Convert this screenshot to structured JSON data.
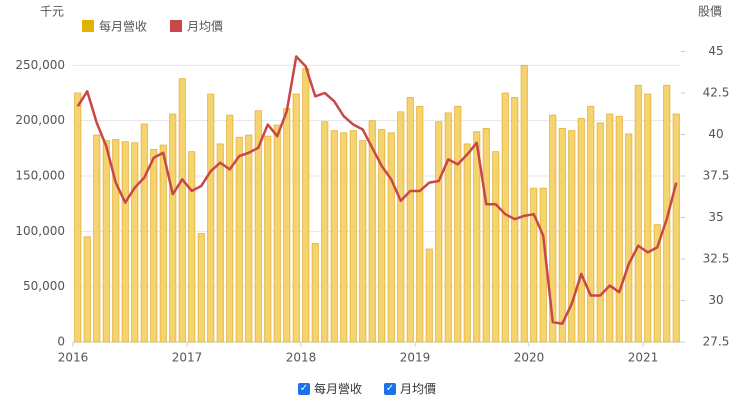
{
  "chart_data": {
    "type": "bar_line",
    "y_label": "千元",
    "y2_label": "股價",
    "categories": [
      "2016",
      null,
      null,
      null,
      null,
      null,
      null,
      null,
      null,
      null,
      null,
      null,
      "2017",
      null,
      null,
      null,
      null,
      null,
      null,
      null,
      null,
      null,
      null,
      null,
      "2018",
      null,
      null,
      null,
      null,
      null,
      null,
      null,
      null,
      null,
      null,
      null,
      "2019",
      null,
      null,
      null,
      null,
      null,
      null,
      null,
      null,
      null,
      null,
      null,
      "2020",
      null,
      null,
      null,
      null,
      null,
      null,
      null,
      null,
      null,
      null,
      null,
      "2021",
      null,
      null,
      null
    ],
    "series": [
      {
        "name": "每月營收",
        "type": "bar",
        "color": "#f5d36e",
        "values": [
          225000,
          95000,
          187000,
          182000,
          183000,
          181000,
          180000,
          197000,
          174000,
          178000,
          206000,
          238000,
          172000,
          98000,
          224000,
          179000,
          205000,
          185000,
          187000,
          209000,
          186000,
          196000,
          211000,
          224000,
          247000,
          89000,
          199000,
          191000,
          189000,
          191000,
          182000,
          200000,
          192000,
          189000,
          208000,
          221000,
          213000,
          84000,
          199000,
          207000,
          213000,
          179000,
          190000,
          193000,
          172000,
          225000,
          221000,
          250000,
          139000,
          139000,
          205000,
          193000,
          191000,
          202000,
          213000,
          198000,
          206000,
          204000,
          188000,
          232000,
          224000,
          106000,
          232000,
          206000
        ]
      },
      {
        "name": "月均價",
        "type": "line",
        "axis": "y2",
        "color": "#c8474a",
        "values": [
          41.7,
          42.6,
          40.7,
          39.3,
          37.1,
          35.9,
          36.8,
          37.4,
          38.6,
          38.9,
          36.4,
          37.3,
          36.6,
          36.9,
          37.8,
          38.3,
          37.9,
          38.7,
          38.9,
          39.2,
          40.6,
          39.9,
          41.4,
          44.7,
          44.1,
          42.3,
          42.5,
          42.0,
          41.1,
          40.6,
          40.3,
          39.2,
          38.1,
          37.3,
          36.0,
          36.6,
          36.6,
          37.1,
          37.2,
          38.5,
          38.2,
          38.8,
          39.5,
          35.8,
          35.8,
          35.2,
          34.9,
          35.1,
          35.2,
          33.9,
          28.7,
          28.6,
          29.8,
          31.6,
          30.3,
          30.3,
          30.9,
          30.5,
          32.2,
          33.3,
          32.9,
          33.2,
          34.9,
          37.1
        ]
      }
    ],
    "ylim": [
      0,
      300000
    ],
    "yticks": [
      0,
      {
        "value": 50000,
        "label": "50,000"
      },
      {
        "value": 100000,
        "label": "100,000"
      },
      {
        "value": 150000,
        "label": "150,000"
      },
      {
        "value": 200000,
        "label": "200,000"
      },
      {
        "value": 250000,
        "label": "250,000"
      }
    ],
    "y2lim": [
      27.5,
      47.5
    ],
    "y2ticks": [
      27.5,
      30,
      32.5,
      35,
      37.5,
      40,
      42.5,
      45
    ],
    "grid": true
  }
}
